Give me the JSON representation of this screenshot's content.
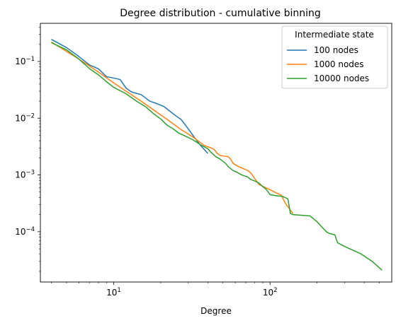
{
  "chart_data": {
    "type": "line",
    "title": "Degree distribution - cumulative binning",
    "xlabel": "Degree",
    "ylabel": "",
    "xscale": "log",
    "yscale": "log",
    "xlim": [
      3.4,
      600
    ],
    "ylim": [
      1.3e-05,
      0.47
    ],
    "grid": false,
    "legend": {
      "title": "Intermediate state",
      "placement": "top-right"
    },
    "x_ticks": [
      {
        "base": "10",
        "exp": "1",
        "value": 10
      },
      {
        "base": "10",
        "exp": "2",
        "value": 100
      }
    ],
    "y_ticks": [
      {
        "base": "10",
        "exp": "−4",
        "value": 0.0001
      },
      {
        "base": "10",
        "exp": "−3",
        "value": 0.001
      },
      {
        "base": "10",
        "exp": "−2",
        "value": 0.01
      },
      {
        "base": "10",
        "exp": "−1",
        "value": 0.1
      }
    ],
    "series": [
      {
        "name": "100 nodes",
        "color": "#1f77b4",
        "points": [
          [
            4,
            0.245
          ],
          [
            5,
            0.175
          ],
          [
            6,
            0.122
          ],
          [
            7,
            0.087
          ],
          [
            8,
            0.074
          ],
          [
            9,
            0.054
          ],
          [
            10,
            0.051
          ],
          [
            11,
            0.048
          ],
          [
            12,
            0.034
          ],
          [
            13,
            0.029
          ],
          [
            15,
            0.026
          ],
          [
            17,
            0.02
          ],
          [
            19,
            0.018
          ],
          [
            21,
            0.016
          ],
          [
            25,
            0.011
          ],
          [
            27,
            0.0095
          ],
          [
            30,
            0.0065
          ],
          [
            33,
            0.0045
          ],
          [
            36,
            0.0033
          ],
          [
            40,
            0.0024
          ]
        ]
      },
      {
        "name": "1000 nodes",
        "color": "#ff7f0e",
        "points": [
          [
            4,
            0.22
          ],
          [
            6,
            0.11
          ],
          [
            8,
            0.065
          ],
          [
            10,
            0.042
          ],
          [
            12,
            0.03
          ],
          [
            15,
            0.02
          ],
          [
            18,
            0.014
          ],
          [
            22,
            0.0095
          ],
          [
            27,
            0.0063
          ],
          [
            32,
            0.0047
          ],
          [
            38,
            0.0033
          ],
          [
            42,
            0.003
          ],
          [
            44,
            0.0028
          ],
          [
            46,
            0.0024
          ],
          [
            48,
            0.0022
          ],
          [
            54,
            0.0021
          ],
          [
            56,
            0.0019
          ],
          [
            58,
            0.0016
          ],
          [
            63,
            0.0014
          ],
          [
            72,
            0.0012
          ],
          [
            75,
            0.0011
          ],
          [
            85,
            0.00068
          ],
          [
            100,
            0.00055
          ],
          [
            110,
            0.00048
          ],
          [
            118,
            0.00044
          ],
          [
            125,
            0.00032
          ],
          [
            135,
            0.00024
          ],
          [
            140,
            0.00021
          ]
        ]
      },
      {
        "name": "10000 nodes",
        "color": "#2ca02c",
        "points": [
          [
            4,
            0.215
          ],
          [
            5,
            0.16
          ],
          [
            6,
            0.11
          ],
          [
            7,
            0.075
          ],
          [
            8,
            0.058
          ],
          [
            9,
            0.044
          ],
          [
            10,
            0.035
          ],
          [
            12,
            0.027
          ],
          [
            14,
            0.02
          ],
          [
            16,
            0.016
          ],
          [
            18,
            0.012
          ],
          [
            20,
            0.0097
          ],
          [
            22,
            0.0075
          ],
          [
            24,
            0.0065
          ],
          [
            26,
            0.0055
          ],
          [
            28,
            0.005
          ],
          [
            32,
            0.0042
          ],
          [
            36,
            0.0034
          ],
          [
            40,
            0.0029
          ],
          [
            42,
            0.0025
          ],
          [
            45,
            0.0021
          ],
          [
            48,
            0.0019
          ],
          [
            52,
            0.0016
          ],
          [
            54,
            0.0014
          ],
          [
            58,
            0.0012
          ],
          [
            62,
            0.0011
          ],
          [
            66,
            0.001
          ],
          [
            72,
            0.00092
          ],
          [
            75,
            0.00084
          ],
          [
            80,
            0.00078
          ],
          [
            85,
            0.00072
          ],
          [
            90,
            0.00062
          ],
          [
            95,
            0.00055
          ],
          [
            100,
            0.00045
          ],
          [
            110,
            0.00043
          ],
          [
            120,
            0.00042
          ],
          [
            125,
            0.0004
          ],
          [
            130,
            0.00038
          ],
          [
            135,
            0.00021
          ],
          [
            140,
            0.0002
          ],
          [
            180,
            0.00019
          ],
          [
            200,
            0.00015
          ],
          [
            215,
            0.00012
          ],
          [
            230,
            9.9e-05
          ],
          [
            240,
            9.3e-05
          ],
          [
            260,
            8.8e-05
          ],
          [
            270,
            6.4e-05
          ],
          [
            300,
            5.5e-05
          ],
          [
            340,
            4.7e-05
          ],
          [
            380,
            4.1e-05
          ],
          [
            450,
            3e-05
          ],
          [
            520,
            2.1e-05
          ]
        ]
      }
    ]
  }
}
